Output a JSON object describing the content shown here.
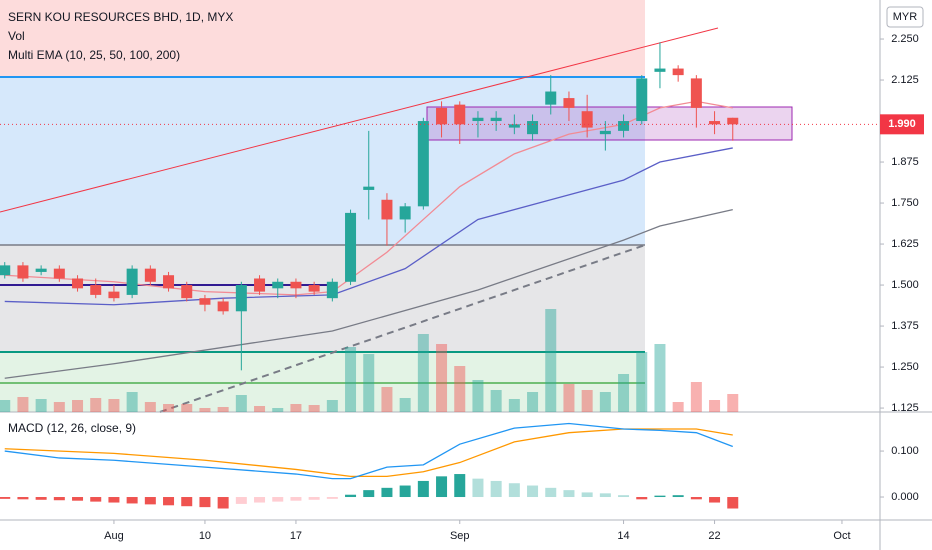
{
  "chart_data": [
    {
      "type": "candlestick",
      "title": "SERN KOU RESOURCES BHD, 1D, MYX",
      "indicators": [
        "Vol",
        "Multi EMA (10, 25, 50, 100, 200)"
      ],
      "currency": "MYR",
      "x": [
        -6,
        -5,
        -4,
        -3,
        -2,
        -1,
        0,
        1,
        2,
        3,
        4,
        5,
        6,
        7,
        8,
        9,
        10,
        11,
        12,
        13,
        14,
        15,
        16,
        17,
        18,
        19,
        20,
        21,
        22,
        23,
        24,
        25,
        26,
        27,
        28,
        29,
        30,
        31,
        32,
        33,
        34
      ],
      "open": [
        1.53,
        1.56,
        1.54,
        1.55,
        1.52,
        1.5,
        1.48,
        1.47,
        1.55,
        1.53,
        1.5,
        1.46,
        1.45,
        1.42,
        1.52,
        1.49,
        1.51,
        1.5,
        1.46,
        1.51,
        1.79,
        1.76,
        1.7,
        1.74,
        2.04,
        2.05,
        2.0,
        2.0,
        1.98,
        1.96,
        2.05,
        2.07,
        2.03,
        1.96,
        1.97,
        2.0,
        2.15,
        2.16,
        2.13,
        2.0,
        2.01
      ],
      "high": [
        1.57,
        1.57,
        1.56,
        1.56,
        1.53,
        1.52,
        1.5,
        1.56,
        1.56,
        1.54,
        1.51,
        1.47,
        1.46,
        1.51,
        1.53,
        1.52,
        1.52,
        1.51,
        1.52,
        1.73,
        1.97,
        1.78,
        1.75,
        2.01,
        2.06,
        2.06,
        2.03,
        2.03,
        2.02,
        2.02,
        2.14,
        2.09,
        2.08,
        2.0,
        2.02,
        2.14,
        2.24,
        2.17,
        2.14,
        2.03,
        2.01
      ],
      "low": [
        1.52,
        1.51,
        1.53,
        1.51,
        1.48,
        1.46,
        1.45,
        1.46,
        1.5,
        1.48,
        1.45,
        1.42,
        1.41,
        1.24,
        1.47,
        1.46,
        1.46,
        1.47,
        1.45,
        1.5,
        1.7,
        1.62,
        1.66,
        1.73,
        1.95,
        1.93,
        1.95,
        1.97,
        1.96,
        1.94,
        2.02,
        2.0,
        1.95,
        1.91,
        1.95,
        1.99,
        2.1,
        2.12,
        1.98,
        1.96,
        1.94
      ],
      "close": [
        1.56,
        1.52,
        1.55,
        1.52,
        1.49,
        1.47,
        1.46,
        1.55,
        1.51,
        1.49,
        1.46,
        1.44,
        1.42,
        1.5,
        1.48,
        1.51,
        1.49,
        1.48,
        1.51,
        1.72,
        1.8,
        1.7,
        1.74,
        2.0,
        1.99,
        1.99,
        2.01,
        2.01,
        1.99,
        2.0,
        2.09,
        2.04,
        1.98,
        1.97,
        2.0,
        2.13,
        2.16,
        2.14,
        2.04,
        1.99,
        1.99
      ],
      "volume": [
        12,
        15,
        13,
        10,
        12,
        14,
        13,
        20,
        10,
        8,
        8,
        4,
        5,
        17,
        6,
        4,
        8,
        7,
        12,
        65,
        58,
        25,
        14,
        78,
        68,
        46,
        32,
        22,
        13,
        20,
        103,
        28,
        22,
        20,
        38,
        60,
        68,
        10,
        30,
        12,
        18
      ],
      "up_color": "#26a69a",
      "down_color": "#ef5350",
      "lines": [
        {
          "color": "#f28b94",
          "x": [
            -6,
            0,
            5,
            10,
            12,
            13,
            15,
            17,
            19,
            22,
            25,
            28,
            30,
            32,
            34
          ],
          "values": [
            1.53,
            1.51,
            1.48,
            1.47,
            1.48,
            1.52,
            1.6,
            1.7,
            1.8,
            1.9,
            1.96,
            1.99,
            2.04,
            2.06,
            2.04
          ]
        },
        {
          "color": "#5b5fc7",
          "x": [
            -6,
            0,
            6,
            12,
            16,
            20,
            24,
            28,
            30,
            34
          ],
          "values": [
            1.45,
            1.44,
            1.46,
            1.47,
            1.55,
            1.7,
            1.76,
            1.82,
            1.875,
            1.918
          ]
        },
        {
          "color": "#787b86",
          "x": [
            -6,
            0,
            12,
            20,
            28,
            30,
            34
          ],
          "values": [
            1.216,
            1.26,
            1.36,
            1.485,
            1.637,
            1.68,
            1.73
          ]
        }
      ],
      "xlim": [
        -6.26,
        42.09
      ],
      "ylim": [
        1.113,
        2.369
      ],
      "xticks": [
        {
          "value": 0,
          "label": "Aug"
        },
        {
          "value": 5,
          "label": "10"
        },
        {
          "value": 10,
          "label": "17"
        },
        {
          "value": 19,
          "label": "Sep"
        },
        {
          "value": 28,
          "label": "14"
        },
        {
          "value": 33,
          "label": "22"
        },
        {
          "value": 40,
          "label": "Oct"
        }
      ],
      "yticks": [
        {
          "value": 2.25,
          "label": "2.250"
        },
        {
          "value": 2.125,
          "label": "2.125"
        },
        {
          "value": 1.875,
          "label": "1.875"
        },
        {
          "value": 1.75,
          "label": "1.750"
        },
        {
          "value": 1.625,
          "label": "1.625"
        },
        {
          "value": 1.5,
          "label": "1.500"
        },
        {
          "value": 1.375,
          "label": "1.375"
        },
        {
          "value": 1.25,
          "label": "1.250"
        },
        {
          "value": 1.125,
          "label": "1.125"
        }
      ],
      "last_price": {
        "value": 1.99,
        "label": "1.990"
      },
      "last_price_color": "#f23645"
    },
    {
      "type": "macd",
      "title": "MACD (12, 26, close, 9)",
      "histogram": [
        -0.004,
        -0.005,
        -0.006,
        -0.007,
        -0.008,
        -0.01,
        -0.012,
        -0.014,
        -0.016,
        -0.018,
        -0.02,
        -0.022,
        -0.025,
        -0.015,
        -0.012,
        -0.01,
        -0.008,
        -0.006,
        -0.004,
        0.005,
        0.015,
        0.02,
        0.025,
        0.035,
        0.045,
        0.05,
        0.04,
        0.035,
        0.03,
        0.025,
        0.02,
        0.015,
        0.01,
        0.008,
        0.004,
        -0.005,
        0.003,
        0.004,
        -0.005,
        -0.012,
        -0.025
      ],
      "macd_line": {
        "color": "#2196f3",
        "x": [
          -6,
          -3,
          0,
          5,
          10,
          12,
          13,
          15,
          17,
          19,
          22,
          25,
          28,
          30,
          32,
          34
        ],
        "values": [
          0.1,
          0.085,
          0.08,
          0.065,
          0.05,
          0.04,
          0.04,
          0.065,
          0.07,
          0.115,
          0.15,
          0.16,
          0.148,
          0.145,
          0.14,
          0.11
        ]
      },
      "signal_line": {
        "color": "#ff9800",
        "x": [
          -6,
          0,
          5,
          10,
          13,
          15,
          17,
          19,
          22,
          25,
          28,
          32,
          34
        ],
        "values": [
          0.105,
          0.095,
          0.08,
          0.06,
          0.045,
          0.045,
          0.055,
          0.075,
          0.12,
          0.14,
          0.148,
          0.148,
          0.135
        ]
      },
      "ylim": [
        -0.05,
        0.185
      ],
      "yticks": [
        {
          "value": 0.1,
          "label": "0.100"
        },
        {
          "value": 0,
          "label": "0.000"
        }
      ]
    }
  ]
}
